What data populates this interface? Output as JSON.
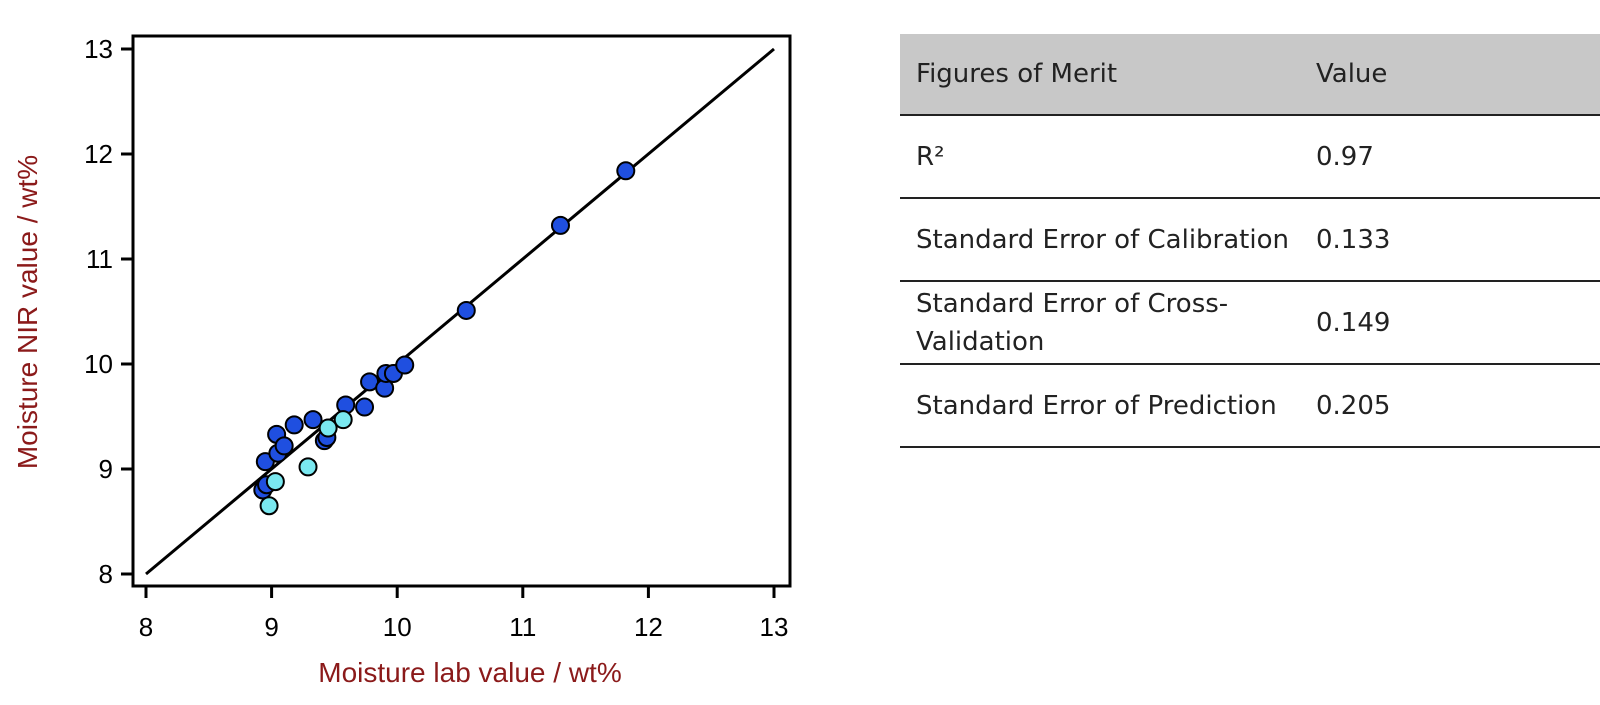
{
  "chart_data": {
    "type": "scatter",
    "xlabel": "Moisture lab value / wt%",
    "ylabel": "Moisture NIR value / wt%",
    "xlim": [
      8,
      13
    ],
    "ylim": [
      8,
      13
    ],
    "x_ticks": [
      "8",
      "9",
      "10",
      "11",
      "12",
      "13"
    ],
    "y_ticks": [
      "8",
      "9",
      "10",
      "11",
      "12",
      "13"
    ],
    "grid": false,
    "identity_line": {
      "x": [
        8,
        13
      ],
      "y": [
        8,
        13
      ],
      "color": "#000000"
    },
    "series": [
      {
        "color": "#1f4fe0",
        "points": [
          [
            8.93,
            8.8
          ],
          [
            8.96,
            8.85
          ],
          [
            8.95,
            9.07
          ],
          [
            9.05,
            9.15
          ],
          [
            9.04,
            9.33
          ],
          [
            9.1,
            9.22
          ],
          [
            9.18,
            9.42
          ],
          [
            9.33,
            9.47
          ],
          [
            9.42,
            9.27
          ],
          [
            9.44,
            9.3
          ],
          [
            9.59,
            9.61
          ],
          [
            9.74,
            9.59
          ],
          [
            9.78,
            9.83
          ],
          [
            9.9,
            9.77
          ],
          [
            9.91,
            9.91
          ],
          [
            9.97,
            9.91
          ],
          [
            10.06,
            9.99
          ],
          [
            10.55,
            10.51
          ],
          [
            11.3,
            11.32
          ],
          [
            11.82,
            11.84
          ]
        ]
      },
      {
        "color": "#7ae8f0",
        "points": [
          [
            8.98,
            8.65
          ],
          [
            9.03,
            8.88
          ],
          [
            9.29,
            9.02
          ],
          [
            9.45,
            9.39
          ],
          [
            9.57,
            9.47
          ]
        ]
      }
    ]
  },
  "table": {
    "headers": [
      "Figures of Merit",
      "Value"
    ],
    "rows": [
      {
        "label": "R²",
        "value": "0.97"
      },
      {
        "label": "Standard Error of Calibration",
        "value": "0.133"
      },
      {
        "label": "Standard Error of Cross-Validation",
        "value": "0.149"
      },
      {
        "label": "Standard Error of Prediction",
        "value": "0.205"
      }
    ]
  }
}
